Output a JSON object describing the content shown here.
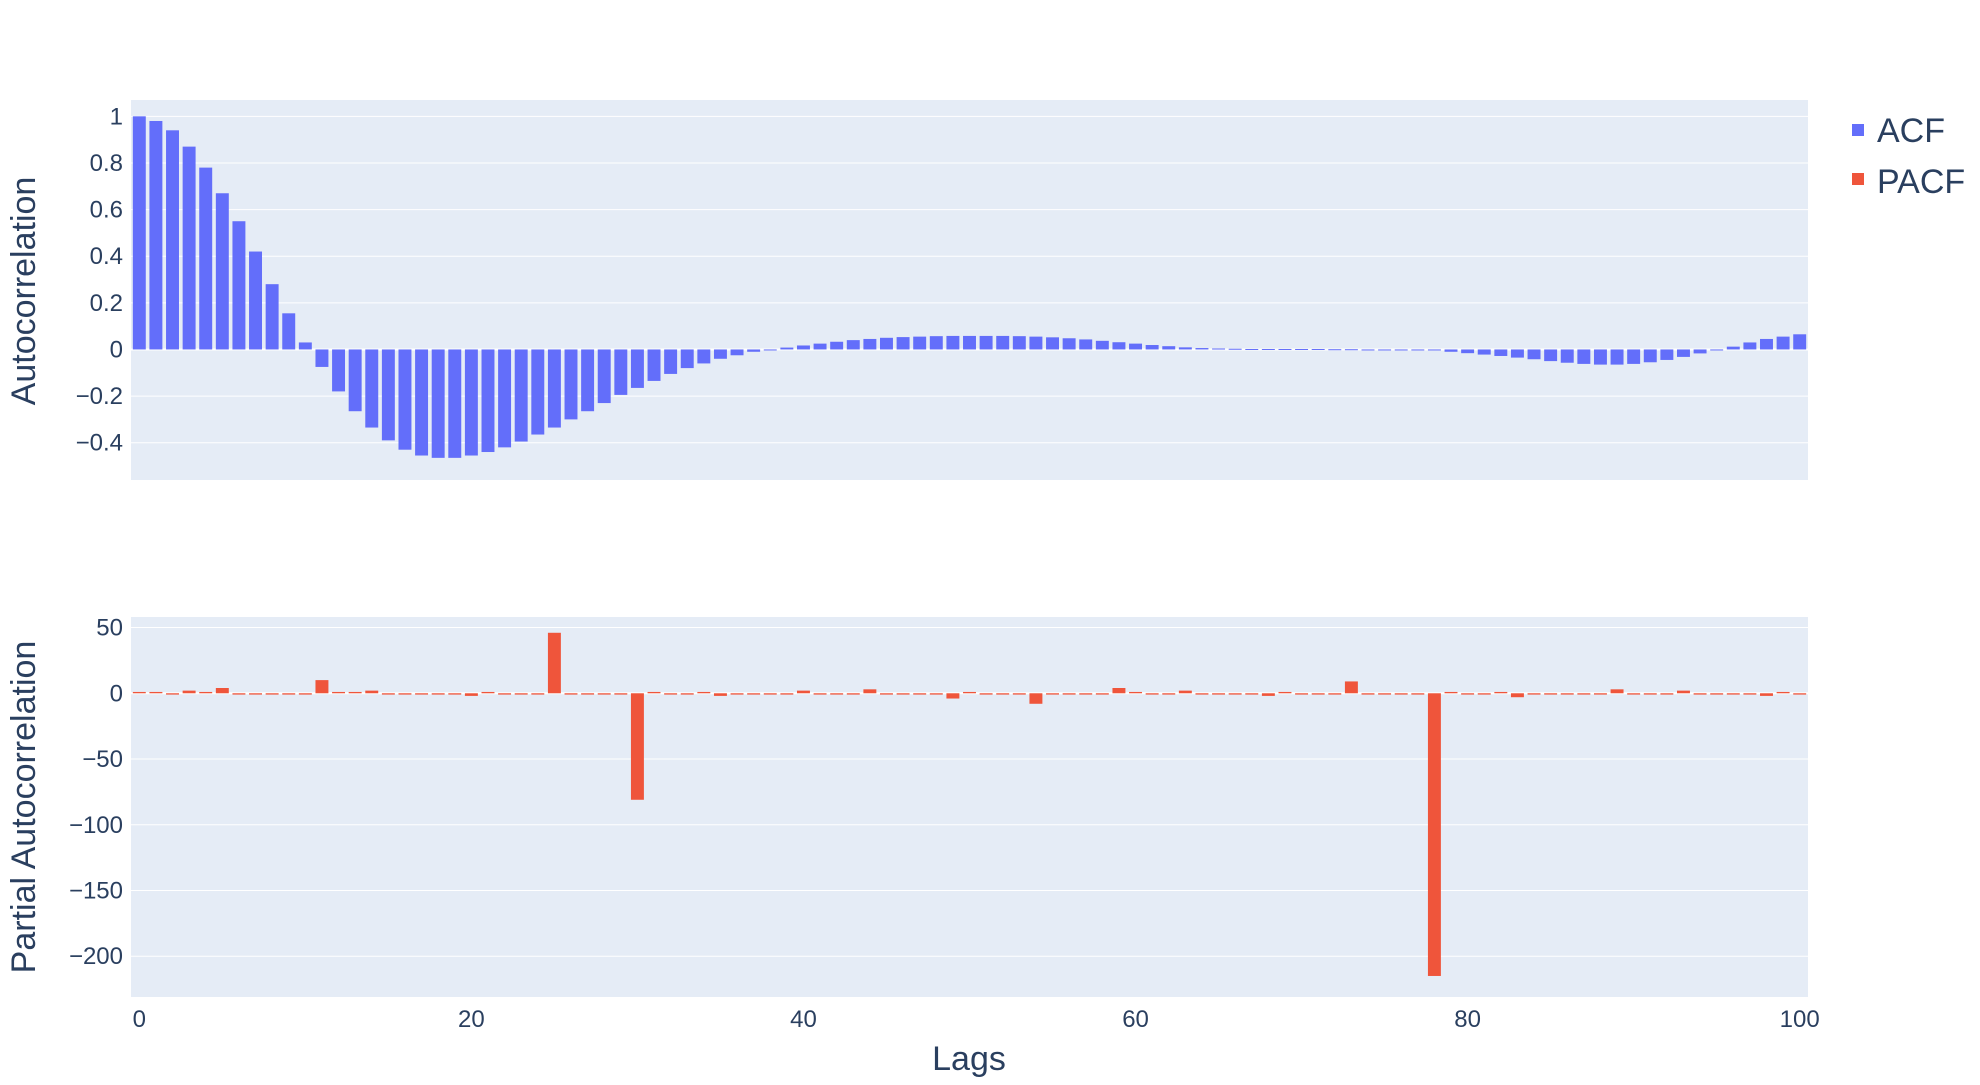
{
  "colors": {
    "acf": "#636efa",
    "pacf": "#ef553b",
    "plot_bg": "#e5ecf6",
    "grid": "#ffffff",
    "text": "#2a3f5f"
  },
  "legend": {
    "placement": "top-right",
    "items": [
      "ACF",
      "PACF"
    ]
  },
  "chart_data": [
    {
      "type": "bar",
      "name": "ACF",
      "xlabel": "",
      "ylabel": "Autocorrelation",
      "grid": true,
      "xlim": [
        -0.5,
        100.5
      ],
      "ylim": [
        -0.56,
        1.07
      ],
      "yticks": [
        1,
        0.8,
        0.6,
        0.4,
        0.2,
        0,
        -0.2,
        -0.4
      ],
      "ytick_labels": [
        "1",
        "0.8",
        "0.6",
        "0.4",
        "0.2",
        "0",
        "−0.2",
        "−0.4"
      ],
      "x": [
        0,
        1,
        2,
        3,
        4,
        5,
        6,
        7,
        8,
        9,
        10,
        11,
        12,
        13,
        14,
        15,
        16,
        17,
        18,
        19,
        20,
        21,
        22,
        23,
        24,
        25,
        26,
        27,
        28,
        29,
        30,
        31,
        32,
        33,
        34,
        35,
        36,
        37,
        38,
        39,
        40,
        41,
        42,
        43,
        44,
        45,
        46,
        47,
        48,
        49,
        50,
        51,
        52,
        53,
        54,
        55,
        56,
        57,
        58,
        59,
        60,
        61,
        62,
        63,
        64,
        65,
        66,
        67,
        68,
        69,
        70,
        71,
        72,
        73,
        74,
        75,
        76,
        77,
        78,
        79,
        80,
        81,
        82,
        83,
        84,
        85,
        86,
        87,
        88,
        89,
        90,
        91,
        92,
        93,
        94,
        95,
        96,
        97,
        98,
        99,
        100
      ],
      "values": [
        1.0,
        0.98,
        0.94,
        0.87,
        0.78,
        0.67,
        0.55,
        0.42,
        0.28,
        0.155,
        0.03,
        -0.075,
        -0.18,
        -0.265,
        -0.335,
        -0.39,
        -0.43,
        -0.455,
        -0.465,
        -0.465,
        -0.455,
        -0.44,
        -0.42,
        -0.395,
        -0.365,
        -0.335,
        -0.3,
        -0.265,
        -0.23,
        -0.195,
        -0.165,
        -0.135,
        -0.105,
        -0.08,
        -0.06,
        -0.04,
        -0.025,
        -0.01,
        0.0,
        0.008,
        0.017,
        0.025,
        0.033,
        0.04,
        0.045,
        0.05,
        0.053,
        0.055,
        0.057,
        0.058,
        0.058,
        0.058,
        0.058,
        0.057,
        0.055,
        0.052,
        0.048,
        0.043,
        0.037,
        0.031,
        0.025,
        0.019,
        0.014,
        0.009,
        0.006,
        0.004,
        0.003,
        0.002,
        0.002,
        0.002,
        0.002,
        0.002,
        0.001,
        0.001,
        0.0,
        0.0,
        0.0,
        -0.001,
        -0.004,
        -0.01,
        -0.016,
        -0.022,
        -0.028,
        -0.035,
        -0.042,
        -0.05,
        -0.057,
        -0.062,
        -0.065,
        -0.065,
        -0.062,
        -0.055,
        -0.045,
        -0.032,
        -0.017,
        0.0,
        0.012,
        0.03,
        0.045,
        0.055,
        0.065
      ]
    },
    {
      "type": "bar",
      "name": "PACF",
      "xlabel": "Lags",
      "ylabel": "Partial Autocorrelation",
      "grid": true,
      "xlim": [
        -0.5,
        100.5
      ],
      "ylim": [
        -231,
        58
      ],
      "yticks": [
        50,
        0,
        -50,
        -100,
        -150,
        -200
      ],
      "ytick_labels": [
        "50",
        "0",
        "−50",
        "−100",
        "−150",
        "−200"
      ],
      "xticks": [
        0,
        20,
        40,
        60,
        80,
        100
      ],
      "xtick_labels": [
        "0",
        "20",
        "40",
        "60",
        "80",
        "100"
      ],
      "x": [
        0,
        1,
        2,
        3,
        4,
        5,
        6,
        7,
        8,
        9,
        10,
        11,
        12,
        13,
        14,
        15,
        16,
        17,
        18,
        19,
        20,
        21,
        22,
        23,
        24,
        25,
        26,
        27,
        28,
        29,
        30,
        31,
        32,
        33,
        34,
        35,
        36,
        37,
        38,
        39,
        40,
        41,
        42,
        43,
        44,
        45,
        46,
        47,
        48,
        49,
        50,
        51,
        52,
        53,
        54,
        55,
        56,
        57,
        58,
        59,
        60,
        61,
        62,
        63,
        64,
        65,
        66,
        67,
        68,
        69,
        70,
        71,
        72,
        73,
        74,
        75,
        76,
        77,
        78,
        79,
        80,
        81,
        82,
        83,
        84,
        85,
        86,
        87,
        88,
        89,
        90,
        91,
        92,
        93,
        94,
        95,
        96,
        97,
        98,
        99,
        100
      ],
      "values": [
        1,
        1,
        -1,
        2,
        1,
        4,
        -1,
        -1,
        -1,
        -1,
        -1,
        10,
        1,
        1,
        2,
        -1,
        -1,
        -1,
        -1,
        -1,
        -2,
        1,
        -1,
        -1,
        -1,
        46,
        -1,
        -1,
        -1,
        -1,
        -81,
        1,
        -1,
        -1,
        1,
        -2,
        -1,
        -1,
        -1,
        -1,
        2,
        -1,
        -1,
        -1,
        3,
        -1,
        -1,
        -1,
        -1,
        -4,
        1,
        -1,
        -1,
        -1,
        -8,
        -1,
        -1,
        -1,
        -1,
        4,
        1,
        -1,
        -1,
        2,
        -1,
        -1,
        -1,
        -1,
        -2,
        1,
        -1,
        -1,
        -1,
        9,
        -1,
        -1,
        -1,
        -1,
        -215,
        1,
        -1,
        -1,
        1,
        -3,
        -1,
        -1,
        -1,
        -1,
        -1,
        3,
        -1,
        -1,
        -1,
        2,
        -1,
        -1,
        -1,
        -1,
        -2,
        1,
        -1
      ]
    }
  ]
}
